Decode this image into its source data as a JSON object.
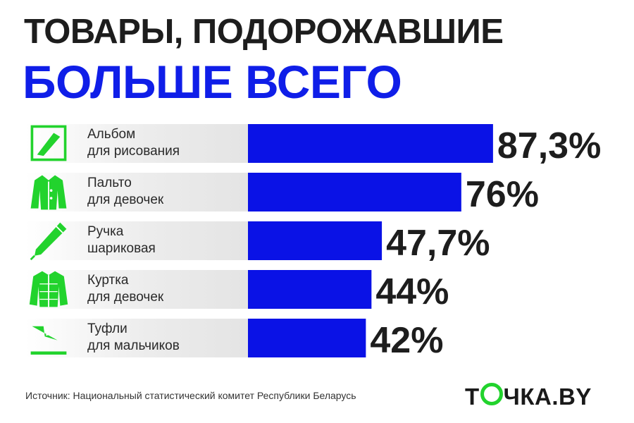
{
  "header": {
    "title_line1": "ТОВАРЫ, ПОДОРОЖАВШИЕ",
    "title_line2": "БОЛЬШЕ ВСЕГО"
  },
  "colors": {
    "bar": "#0a12e6",
    "icon": "#22d32d",
    "title_accent": "#0f1ee8",
    "text": "#1d1d1d"
  },
  "chart_data": {
    "type": "bar",
    "orientation": "horizontal",
    "categories": [
      {
        "line1": "Альбом",
        "line2": "для рисования",
        "icon": "sketchbook-pencil-icon"
      },
      {
        "line1": "Пальто",
        "line2": "для девочек",
        "icon": "coat-icon"
      },
      {
        "line1": "Ручка",
        "line2": "шариковая",
        "icon": "pen-icon"
      },
      {
        "line1": "Куртка",
        "line2": "для девочек",
        "icon": "jacket-icon"
      },
      {
        "line1": "Туфли",
        "line2": "для мальчиков",
        "icon": "shoe-icon"
      }
    ],
    "values": [
      87.3,
      76,
      47.7,
      44,
      42
    ],
    "value_labels": [
      "87,3%",
      "76%",
      "47,7%",
      "44%",
      "42%"
    ],
    "xlim": [
      0,
      100
    ]
  },
  "footer": {
    "source": "Источник: Национальный статистический комитет Республики Беларусь",
    "logo_pre": "Т",
    "logo_post": "ЧКА.BY"
  }
}
